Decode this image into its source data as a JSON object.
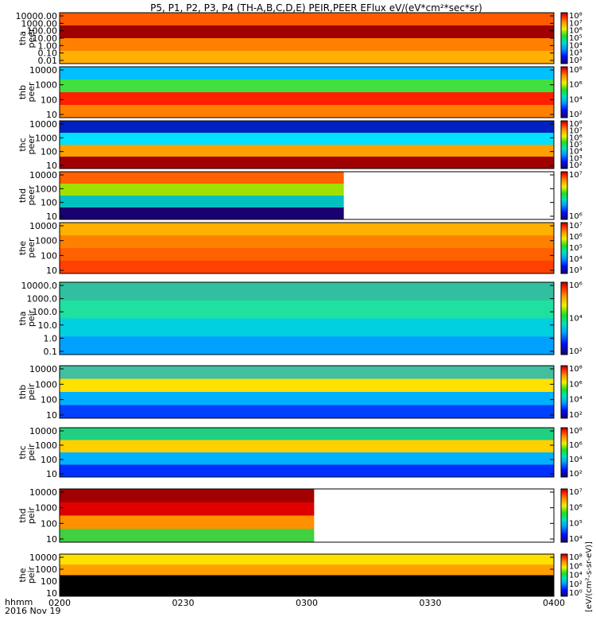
{
  "title": "P5, P1, P2, P3, P4 (TH-A,B,C,D,E) PEIR,PEER EFlux eV/(eV*cm²*sec*sr)",
  "x_axis": {
    "label_line1": "hhmm",
    "label_line2": "2016 Nov 19",
    "ticks": [
      "0200",
      "0230",
      "0300",
      "0330",
      "0400"
    ]
  },
  "colorbar_label": "[eV/(cm²-s-sr-eV)]",
  "chart_data": [
    {
      "type": "heatmap",
      "probe": "tha",
      "species": "peer",
      "ylabel_top": "tha",
      "ylabel_bottom": "peer",
      "yticks": [
        "10000.00",
        "1000.00",
        "100.00",
        "10.00",
        "1.00",
        "0.10",
        "0.01"
      ],
      "colorbar_ticks": [
        "10⁸",
        "10⁷",
        "10⁶",
        "10⁵",
        "10⁴",
        "10³",
        "10²"
      ],
      "data_end_fraction": 1.0
    },
    {
      "type": "heatmap",
      "probe": "thb",
      "species": "peer",
      "ylabel_top": "thb",
      "ylabel_bottom": "peer",
      "yticks": [
        "10000",
        "1000",
        "100",
        "10"
      ],
      "colorbar_ticks": [
        "10⁸",
        "10⁶",
        "10⁴",
        "10²"
      ],
      "data_end_fraction": 1.0
    },
    {
      "type": "heatmap",
      "probe": "thc",
      "species": "peer",
      "ylabel_top": "thc",
      "ylabel_bottom": "peer",
      "yticks": [
        "10000",
        "1000",
        "100",
        "10"
      ],
      "colorbar_ticks": [
        "10⁸",
        "10⁷",
        "10⁶",
        "10⁵",
        "10⁴",
        "10³",
        "10²"
      ],
      "data_end_fraction": 1.0
    },
    {
      "type": "heatmap",
      "probe": "thd",
      "species": "peer",
      "ylabel_top": "thd",
      "ylabel_bottom": "peer",
      "yticks": [
        "10000",
        "1000",
        "100",
        "10"
      ],
      "colorbar_ticks": [
        "10⁷",
        "10⁶"
      ],
      "data_end_fraction": 0.575
    },
    {
      "type": "heatmap",
      "probe": "the",
      "species": "peer",
      "ylabel_top": "the",
      "ylabel_bottom": "peer",
      "yticks": [
        "10000",
        "1000",
        "100",
        "10"
      ],
      "colorbar_ticks": [
        "10⁷",
        "10⁶",
        "10⁵",
        "10⁴",
        "10³"
      ],
      "data_end_fraction": 1.0
    },
    {
      "type": "heatmap",
      "probe": "tha",
      "species": "peir",
      "ylabel_top": "tha",
      "ylabel_bottom": "peir",
      "yticks": [
        "10000.0",
        "1000.0",
        "100.0",
        "10.0",
        "1.0",
        "0.1"
      ],
      "colorbar_ticks": [
        "10⁶",
        "10⁴",
        "10²"
      ],
      "data_end_fraction": 1.0
    },
    {
      "type": "heatmap",
      "probe": "thb",
      "species": "peir",
      "ylabel_top": "thb",
      "ylabel_bottom": "peir",
      "yticks": [
        "10000",
        "1000",
        "100",
        "10"
      ],
      "colorbar_ticks": [
        "10⁸",
        "10⁶",
        "10⁴",
        "10²"
      ],
      "data_end_fraction": 1.0
    },
    {
      "type": "heatmap",
      "probe": "thc",
      "species": "peir",
      "ylabel_top": "thc",
      "ylabel_bottom": "peir",
      "yticks": [
        "10000",
        "1000",
        "100",
        "10"
      ],
      "colorbar_ticks": [
        "10⁸",
        "10⁶",
        "10⁴",
        "10²"
      ],
      "data_end_fraction": 1.0
    },
    {
      "type": "heatmap",
      "probe": "thd",
      "species": "peir",
      "ylabel_top": "thd",
      "ylabel_bottom": "peir",
      "yticks": [
        "10000",
        "1000",
        "100",
        "10"
      ],
      "colorbar_ticks": [
        "10⁷",
        "10⁶",
        "10⁵",
        "10⁴"
      ],
      "data_end_fraction": 0.515
    },
    {
      "type": "heatmap",
      "probe": "the",
      "species": "peir",
      "ylabel_top": "the",
      "ylabel_bottom": "peir",
      "yticks": [
        "10000",
        "1000",
        "100",
        "10"
      ],
      "colorbar_ticks": [
        "10⁸",
        "10⁶",
        "10⁴",
        "10²",
        "10⁰"
      ],
      "data_end_fraction": 1.0
    }
  ]
}
